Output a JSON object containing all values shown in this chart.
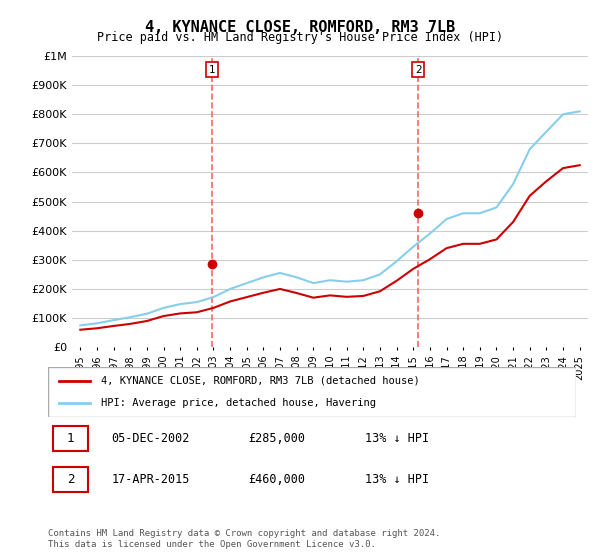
{
  "title": "4, KYNANCE CLOSE, ROMFORD, RM3 7LB",
  "subtitle": "Price paid vs. HM Land Registry's House Price Index (HPI)",
  "years": [
    1995,
    1996,
    1997,
    1998,
    1999,
    2000,
    2001,
    2002,
    2003,
    2004,
    2005,
    2006,
    2007,
    2008,
    2009,
    2010,
    2011,
    2012,
    2013,
    2014,
    2015,
    2016,
    2017,
    2018,
    2019,
    2020,
    2021,
    2022,
    2023,
    2024,
    2025
  ],
  "hpi_values": [
    75000,
    82000,
    93000,
    103000,
    115000,
    135000,
    148000,
    155000,
    172000,
    200000,
    220000,
    240000,
    255000,
    240000,
    220000,
    230000,
    225000,
    230000,
    250000,
    295000,
    345000,
    390000,
    440000,
    460000,
    460000,
    480000,
    560000,
    680000,
    740000,
    800000,
    810000
  ],
  "red_line_x": [
    1995,
    1996,
    1997,
    1998,
    1999,
    2000,
    2001,
    2002,
    2003,
    2004,
    2005,
    2006,
    2007,
    2008,
    2009,
    2010,
    2011,
    2012,
    2013,
    2014,
    2015,
    2016,
    2017,
    2018,
    2019,
    2020,
    2021,
    2022,
    2023,
    2024,
    2025
  ],
  "red_line_values": [
    60000,
    65000,
    73000,
    80000,
    90000,
    107000,
    116000,
    120000,
    135000,
    157000,
    172000,
    187000,
    200000,
    186000,
    170000,
    178000,
    173000,
    176000,
    192000,
    228000,
    269000,
    302000,
    340000,
    355000,
    355000,
    370000,
    430000,
    520000,
    570000,
    615000,
    625000
  ],
  "sale1_x": 2002.92,
  "sale1_y": 285000,
  "sale2_x": 2015.3,
  "sale2_y": 460000,
  "vline1_x": 2002.92,
  "vline2_x": 2015.3,
  "ylim": [
    0,
    1000000
  ],
  "yticks": [
    0,
    100000,
    200000,
    300000,
    400000,
    500000,
    600000,
    700000,
    800000,
    900000,
    1000000
  ],
  "xtick_years": [
    1995,
    1996,
    1997,
    1998,
    1999,
    2000,
    2001,
    2002,
    2003,
    2004,
    2005,
    2006,
    2007,
    2008,
    2009,
    2010,
    2011,
    2012,
    2013,
    2014,
    2015,
    2016,
    2017,
    2018,
    2019,
    2020,
    2021,
    2022,
    2023,
    2024,
    2025
  ],
  "hpi_color": "#87CEEB",
  "red_color": "#CC0000",
  "vline_color": "#FF6666",
  "marker_color_sale": "#CC0000",
  "bg_color": "#FFFFFF",
  "grid_color": "#CCCCCC",
  "legend_label_red": "4, KYNANCE CLOSE, ROMFORD, RM3 7LB (detached house)",
  "legend_label_hpi": "HPI: Average price, detached house, Havering",
  "footnote": "Contains HM Land Registry data © Crown copyright and database right 2024.\nThis data is licensed under the Open Government Licence v3.0.",
  "table_rows": [
    {
      "num": "1",
      "date": "05-DEC-2002",
      "price": "£285,000",
      "rel": "13% ↓ HPI"
    },
    {
      "num": "2",
      "date": "17-APR-2015",
      "price": "£460,000",
      "rel": "13% ↓ HPI"
    }
  ]
}
